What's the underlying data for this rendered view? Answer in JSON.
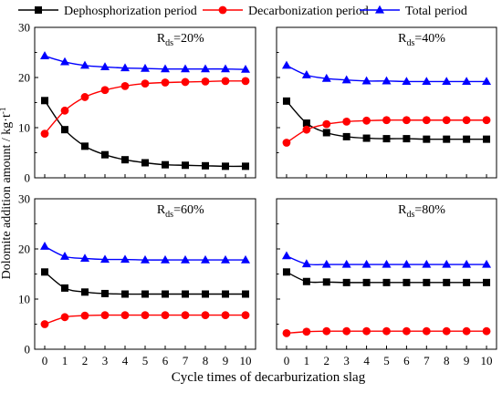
{
  "chart_data": {
    "type": "line",
    "xlabel": "Cycle times of decarburization slag",
    "ylabel": "Dolomite addition amount / kg·t",
    "ylabel_sup": "-1",
    "x": [
      0,
      1,
      2,
      3,
      4,
      5,
      6,
      7,
      8,
      9,
      10
    ],
    "xlim": [
      -0.5,
      10.5
    ],
    "ylim": [
      0,
      30
    ],
    "yticks": [
      0,
      10,
      20,
      30
    ],
    "grid": false,
    "legend_position": "top",
    "series_defs": [
      {
        "name": "Dephosphorization period",
        "color": "#000000",
        "marker": "square"
      },
      {
        "name": "Decarbonization period",
        "color": "#ff0000",
        "marker": "circle"
      },
      {
        "name": "Total period",
        "color": "#0000ff",
        "marker": "triangle"
      }
    ],
    "panels": [
      {
        "label_main": "R",
        "label_sub": "ds",
        "label_value": "=20%",
        "series": [
          {
            "name": "Dephosphorization period",
            "values": [
              15.4,
              9.6,
              6.3,
              4.6,
              3.6,
              3.0,
              2.6,
              2.5,
              2.4,
              2.3,
              2.3
            ]
          },
          {
            "name": "Decarbonization period",
            "values": [
              8.8,
              13.4,
              16.1,
              17.5,
              18.3,
              18.8,
              19.0,
              19.1,
              19.2,
              19.3,
              19.3
            ]
          },
          {
            "name": "Total period",
            "values": [
              24.3,
              23.1,
              22.4,
              22.1,
              21.9,
              21.8,
              21.7,
              21.7,
              21.7,
              21.7,
              21.6
            ]
          }
        ]
      },
      {
        "label_main": "R",
        "label_sub": "ds",
        "label_value": "=40%",
        "series": [
          {
            "name": "Dephosphorization period",
            "values": [
              15.3,
              10.9,
              9.0,
              8.2,
              7.9,
              7.8,
              7.8,
              7.7,
              7.7,
              7.7,
              7.7
            ]
          },
          {
            "name": "Decarbonization period",
            "values": [
              7.0,
              9.6,
              10.7,
              11.2,
              11.4,
              11.5,
              11.5,
              11.5,
              11.5,
              11.5,
              11.5
            ]
          },
          {
            "name": "Total period",
            "values": [
              22.4,
              20.5,
              19.8,
              19.5,
              19.3,
              19.3,
              19.2,
              19.2,
              19.2,
              19.2,
              19.2
            ]
          }
        ]
      },
      {
        "label_main": "R",
        "label_sub": "ds",
        "label_value": "=60%",
        "series": [
          {
            "name": "Dephosphorization period",
            "values": [
              15.4,
              12.2,
              11.4,
              11.1,
              11.0,
              11.0,
              11.0,
              11.0,
              11.0,
              11.0,
              11.0
            ]
          },
          {
            "name": "Decarbonization period",
            "values": [
              5.0,
              6.4,
              6.7,
              6.8,
              6.8,
              6.8,
              6.8,
              6.8,
              6.8,
              6.8,
              6.8
            ]
          },
          {
            "name": "Total period",
            "values": [
              20.5,
              18.5,
              18.1,
              17.9,
              17.9,
              17.8,
              17.8,
              17.8,
              17.8,
              17.8,
              17.8
            ]
          }
        ]
      },
      {
        "label_main": "R",
        "label_sub": "ds",
        "label_value": "=80%",
        "series": [
          {
            "name": "Dephosphorization period",
            "values": [
              15.4,
              13.5,
              13.4,
              13.3,
              13.3,
              13.3,
              13.3,
              13.3,
              13.3,
              13.3,
              13.3
            ]
          },
          {
            "name": "Decarbonization period",
            "values": [
              3.2,
              3.5,
              3.6,
              3.6,
              3.6,
              3.6,
              3.6,
              3.6,
              3.6,
              3.6,
              3.6
            ]
          },
          {
            "name": "Total period",
            "values": [
              18.6,
              17.0,
              16.9,
              16.9,
              16.9,
              16.9,
              16.9,
              16.9,
              16.9,
              16.9,
              16.9
            ]
          }
        ]
      }
    ]
  }
}
